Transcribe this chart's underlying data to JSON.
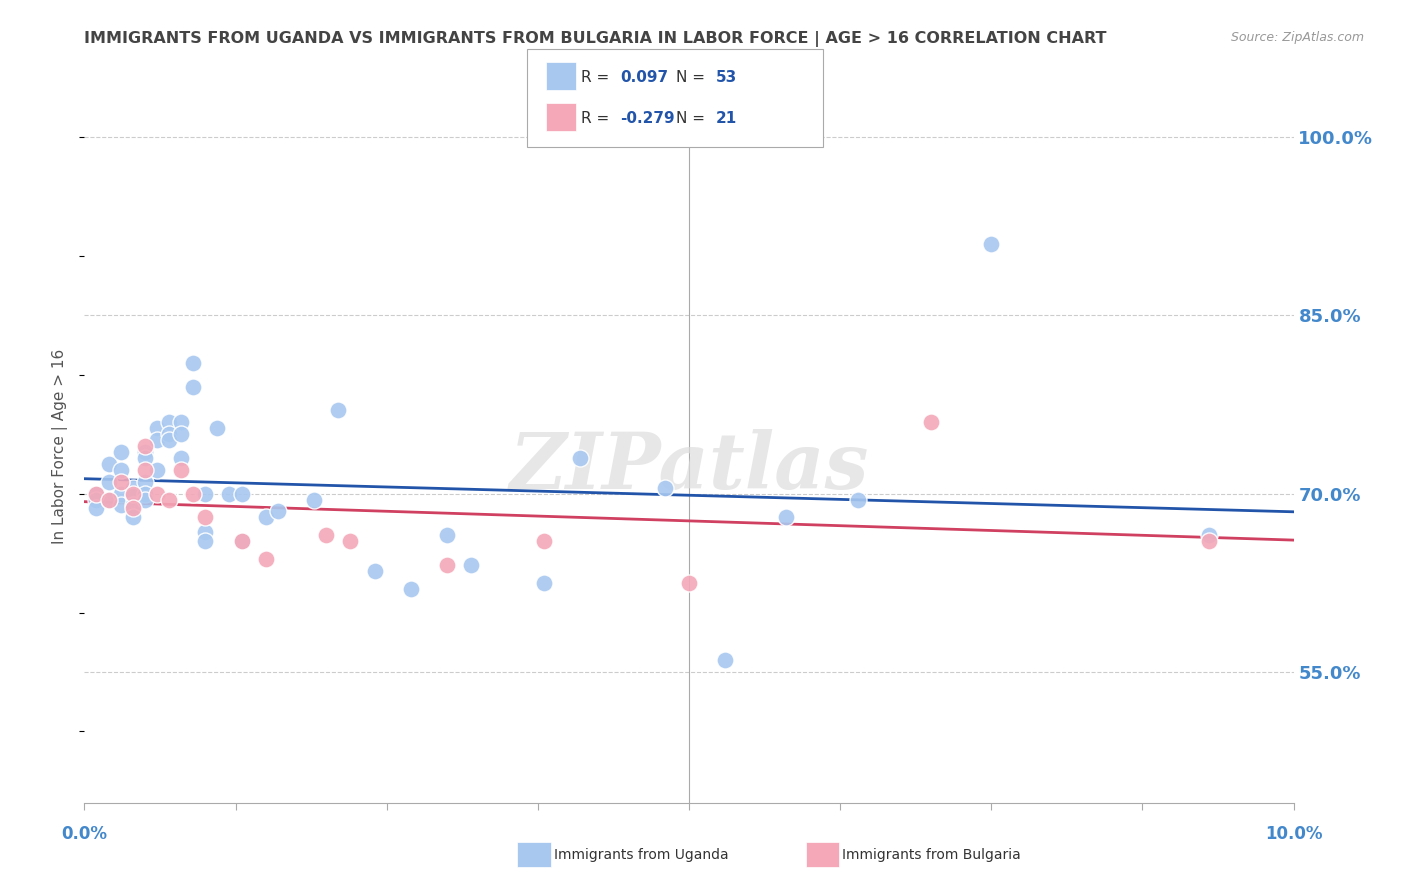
{
  "title": "IMMIGRANTS FROM UGANDA VS IMMIGRANTS FROM BULGARIA IN LABOR FORCE | AGE > 16 CORRELATION CHART",
  "source": "Source: ZipAtlas.com",
  "ylabel": "In Labor Force | Age > 16",
  "yaxis_labels": [
    "100.0%",
    "85.0%",
    "70.0%",
    "55.0%"
  ],
  "yaxis_values": [
    1.0,
    0.85,
    0.7,
    0.55
  ],
  "xmin": 0.0,
  "xmax": 0.1,
  "ymin": 0.44,
  "ymax": 1.04,
  "uganda_color": "#a8c8f0",
  "bulgaria_color": "#f4a8b8",
  "uganda_line_color": "#2255aa",
  "bulgaria_line_color": "#d04060",
  "uganda_color_legend": "#6699cc",
  "bulgaria_color_legend": "#dd7799",
  "r_value_color": "#2255aa",
  "n_value_color": "#2255aa",
  "legend_r_uganda": "0.097",
  "legend_n_uganda": "53",
  "legend_r_bulgaria": "-0.279",
  "legend_n_bulgaria": "21",
  "uganda_x": [
    0.001,
    0.001,
    0.001,
    0.002,
    0.002,
    0.002,
    0.003,
    0.003,
    0.003,
    0.003,
    0.004,
    0.004,
    0.004,
    0.004,
    0.005,
    0.005,
    0.005,
    0.005,
    0.005,
    0.006,
    0.006,
    0.006,
    0.007,
    0.007,
    0.007,
    0.008,
    0.008,
    0.008,
    0.009,
    0.009,
    0.01,
    0.01,
    0.01,
    0.011,
    0.012,
    0.013,
    0.013,
    0.015,
    0.016,
    0.019,
    0.021,
    0.024,
    0.027,
    0.03,
    0.032,
    0.038,
    0.041,
    0.048,
    0.053,
    0.058,
    0.064,
    0.075,
    0.093
  ],
  "uganda_y": [
    0.7,
    0.695,
    0.688,
    0.725,
    0.71,
    0.695,
    0.735,
    0.72,
    0.7,
    0.69,
    0.705,
    0.698,
    0.69,
    0.68,
    0.735,
    0.73,
    0.71,
    0.7,
    0.695,
    0.755,
    0.745,
    0.72,
    0.76,
    0.75,
    0.745,
    0.76,
    0.75,
    0.73,
    0.81,
    0.79,
    0.7,
    0.668,
    0.66,
    0.755,
    0.7,
    0.7,
    0.66,
    0.68,
    0.685,
    0.695,
    0.77,
    0.635,
    0.62,
    0.665,
    0.64,
    0.625,
    0.73,
    0.705,
    0.56,
    0.68,
    0.695,
    0.91,
    0.665
  ],
  "bulgaria_x": [
    0.001,
    0.002,
    0.003,
    0.004,
    0.004,
    0.005,
    0.005,
    0.006,
    0.007,
    0.008,
    0.009,
    0.01,
    0.013,
    0.015,
    0.02,
    0.022,
    0.03,
    0.038,
    0.05,
    0.07,
    0.093
  ],
  "bulgaria_y": [
    0.7,
    0.695,
    0.71,
    0.7,
    0.688,
    0.74,
    0.72,
    0.7,
    0.695,
    0.72,
    0.7,
    0.68,
    0.66,
    0.645,
    0.665,
    0.66,
    0.64,
    0.66,
    0.625,
    0.76,
    0.66
  ],
  "watermark": "ZIPatlas",
  "background_color": "#ffffff",
  "grid_color": "#cccccc",
  "title_color": "#444444",
  "axis_label_color": "#4488cc"
}
